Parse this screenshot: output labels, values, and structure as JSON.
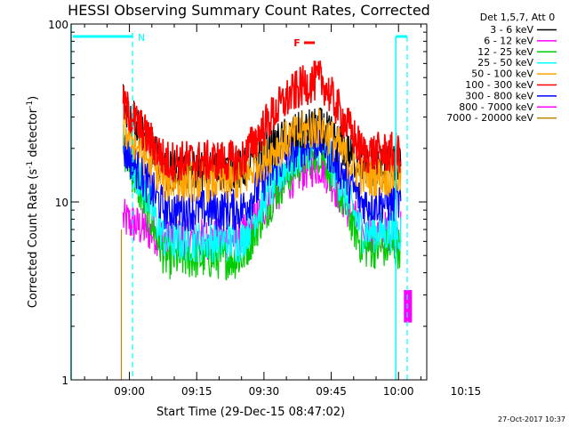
{
  "chart_data": {
    "type": "line",
    "title": "HESSI Observing Summary Count Rates, Corrected",
    "xlabel": "Start Time (29-Dec-15 08:47:02)",
    "ylabel_main": "Corrected Count Rate (s",
    "ylabel_sup1": "-1",
    "ylabel_mid": " detector",
    "ylabel_sup2": "-1",
    "ylabel_end": ")",
    "y_scale": "log",
    "ylim": [
      1,
      100
    ],
    "xlim_minutes": [
      0,
      79.3
    ],
    "y_tick_labels": [
      "1",
      "10",
      "100"
    ],
    "x_tick_labels": [
      "09:00",
      "09:15",
      "09:30",
      "09:45",
      "10:00",
      "10:15"
    ],
    "x_tick_minutes": [
      13,
      28,
      43,
      58,
      73,
      88
    ],
    "legend_title": "Det 1,5,7, Att 0",
    "legend_position": "right",
    "series": [
      {
        "name": "3 - 6 keV",
        "color": "#000000",
        "start": 35,
        "base": 15,
        "peak": 26
      },
      {
        "name": "6 - 12 keV",
        "color": "#ff00ff",
        "start": 8,
        "base": 6.2,
        "peak": 16
      },
      {
        "name": "12 - 25 keV",
        "color": "#00cc00",
        "start": 20,
        "base": 4.8,
        "peak": 19
      },
      {
        "name": "25 - 50 keV",
        "color": "#00ffff",
        "start": 22,
        "base": 6.0,
        "peak": 21
      },
      {
        "name": "50 - 100 keV",
        "color": "#ffa500",
        "start": 26,
        "base": 13,
        "peak": 26
      },
      {
        "name": "100 - 300 keV",
        "color": "#ff0000",
        "start": 35,
        "base": 17,
        "peak": 48
      },
      {
        "name": "300 - 800 keV",
        "color": "#0000ff",
        "start": 20,
        "base": 9.0,
        "peak": 22
      },
      {
        "name": "800 - 7000 keV",
        "color": "#ff00ff",
        "start": 20,
        "base": 10,
        "peak": 21
      },
      {
        "name": "7000 - 20000 keV",
        "color": "#b8860b",
        "start": 0,
        "base": 0,
        "peak": 0
      }
    ],
    "annotations": [
      {
        "label": "N",
        "color": "#00ffff"
      },
      {
        "label": "F",
        "color": "#ff0000"
      }
    ],
    "timestamp": "27-Oct-2017 10:37"
  }
}
